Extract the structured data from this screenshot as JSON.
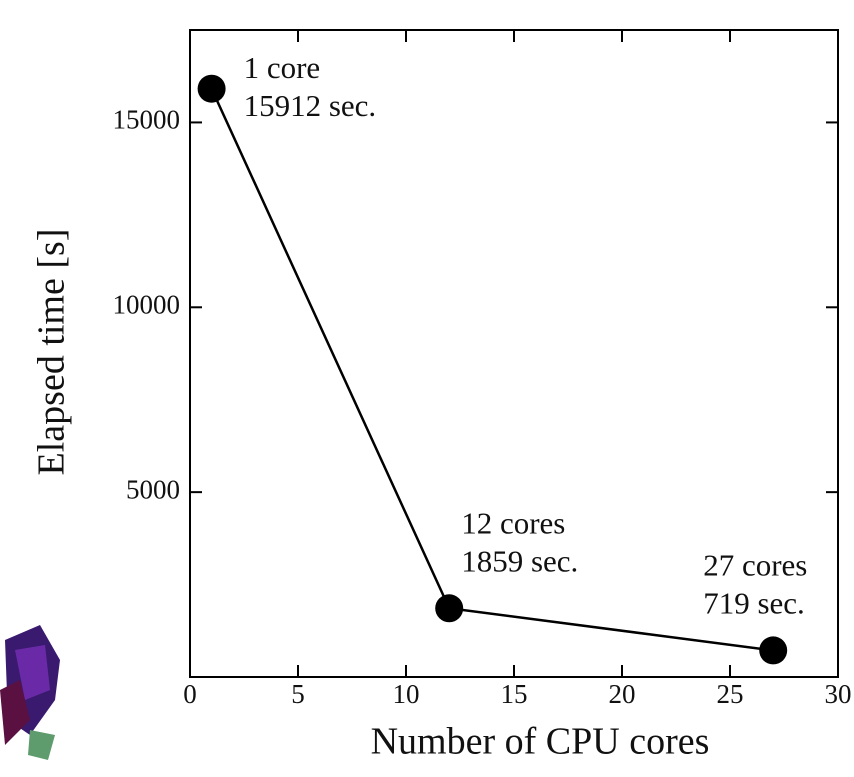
{
  "chart_data": {
    "type": "line",
    "x_label": "Number of CPU cores",
    "y_label": "Elapsed time [s]",
    "x": [
      1,
      12,
      27
    ],
    "values": [
      15912,
      1859,
      719
    ],
    "point_labels": [
      "1 core",
      "12 cores",
      "27 cores"
    ],
    "value_labels": [
      "15912 sec.",
      "1859 sec.",
      "719 sec."
    ],
    "color": "#000000",
    "xlim": [
      0,
      30
    ],
    "xticks": [
      0,
      5,
      10,
      15,
      20,
      25,
      30
    ],
    "ylim": [
      0,
      17500
    ],
    "yticks": [
      5000,
      10000,
      15000
    ]
  }
}
